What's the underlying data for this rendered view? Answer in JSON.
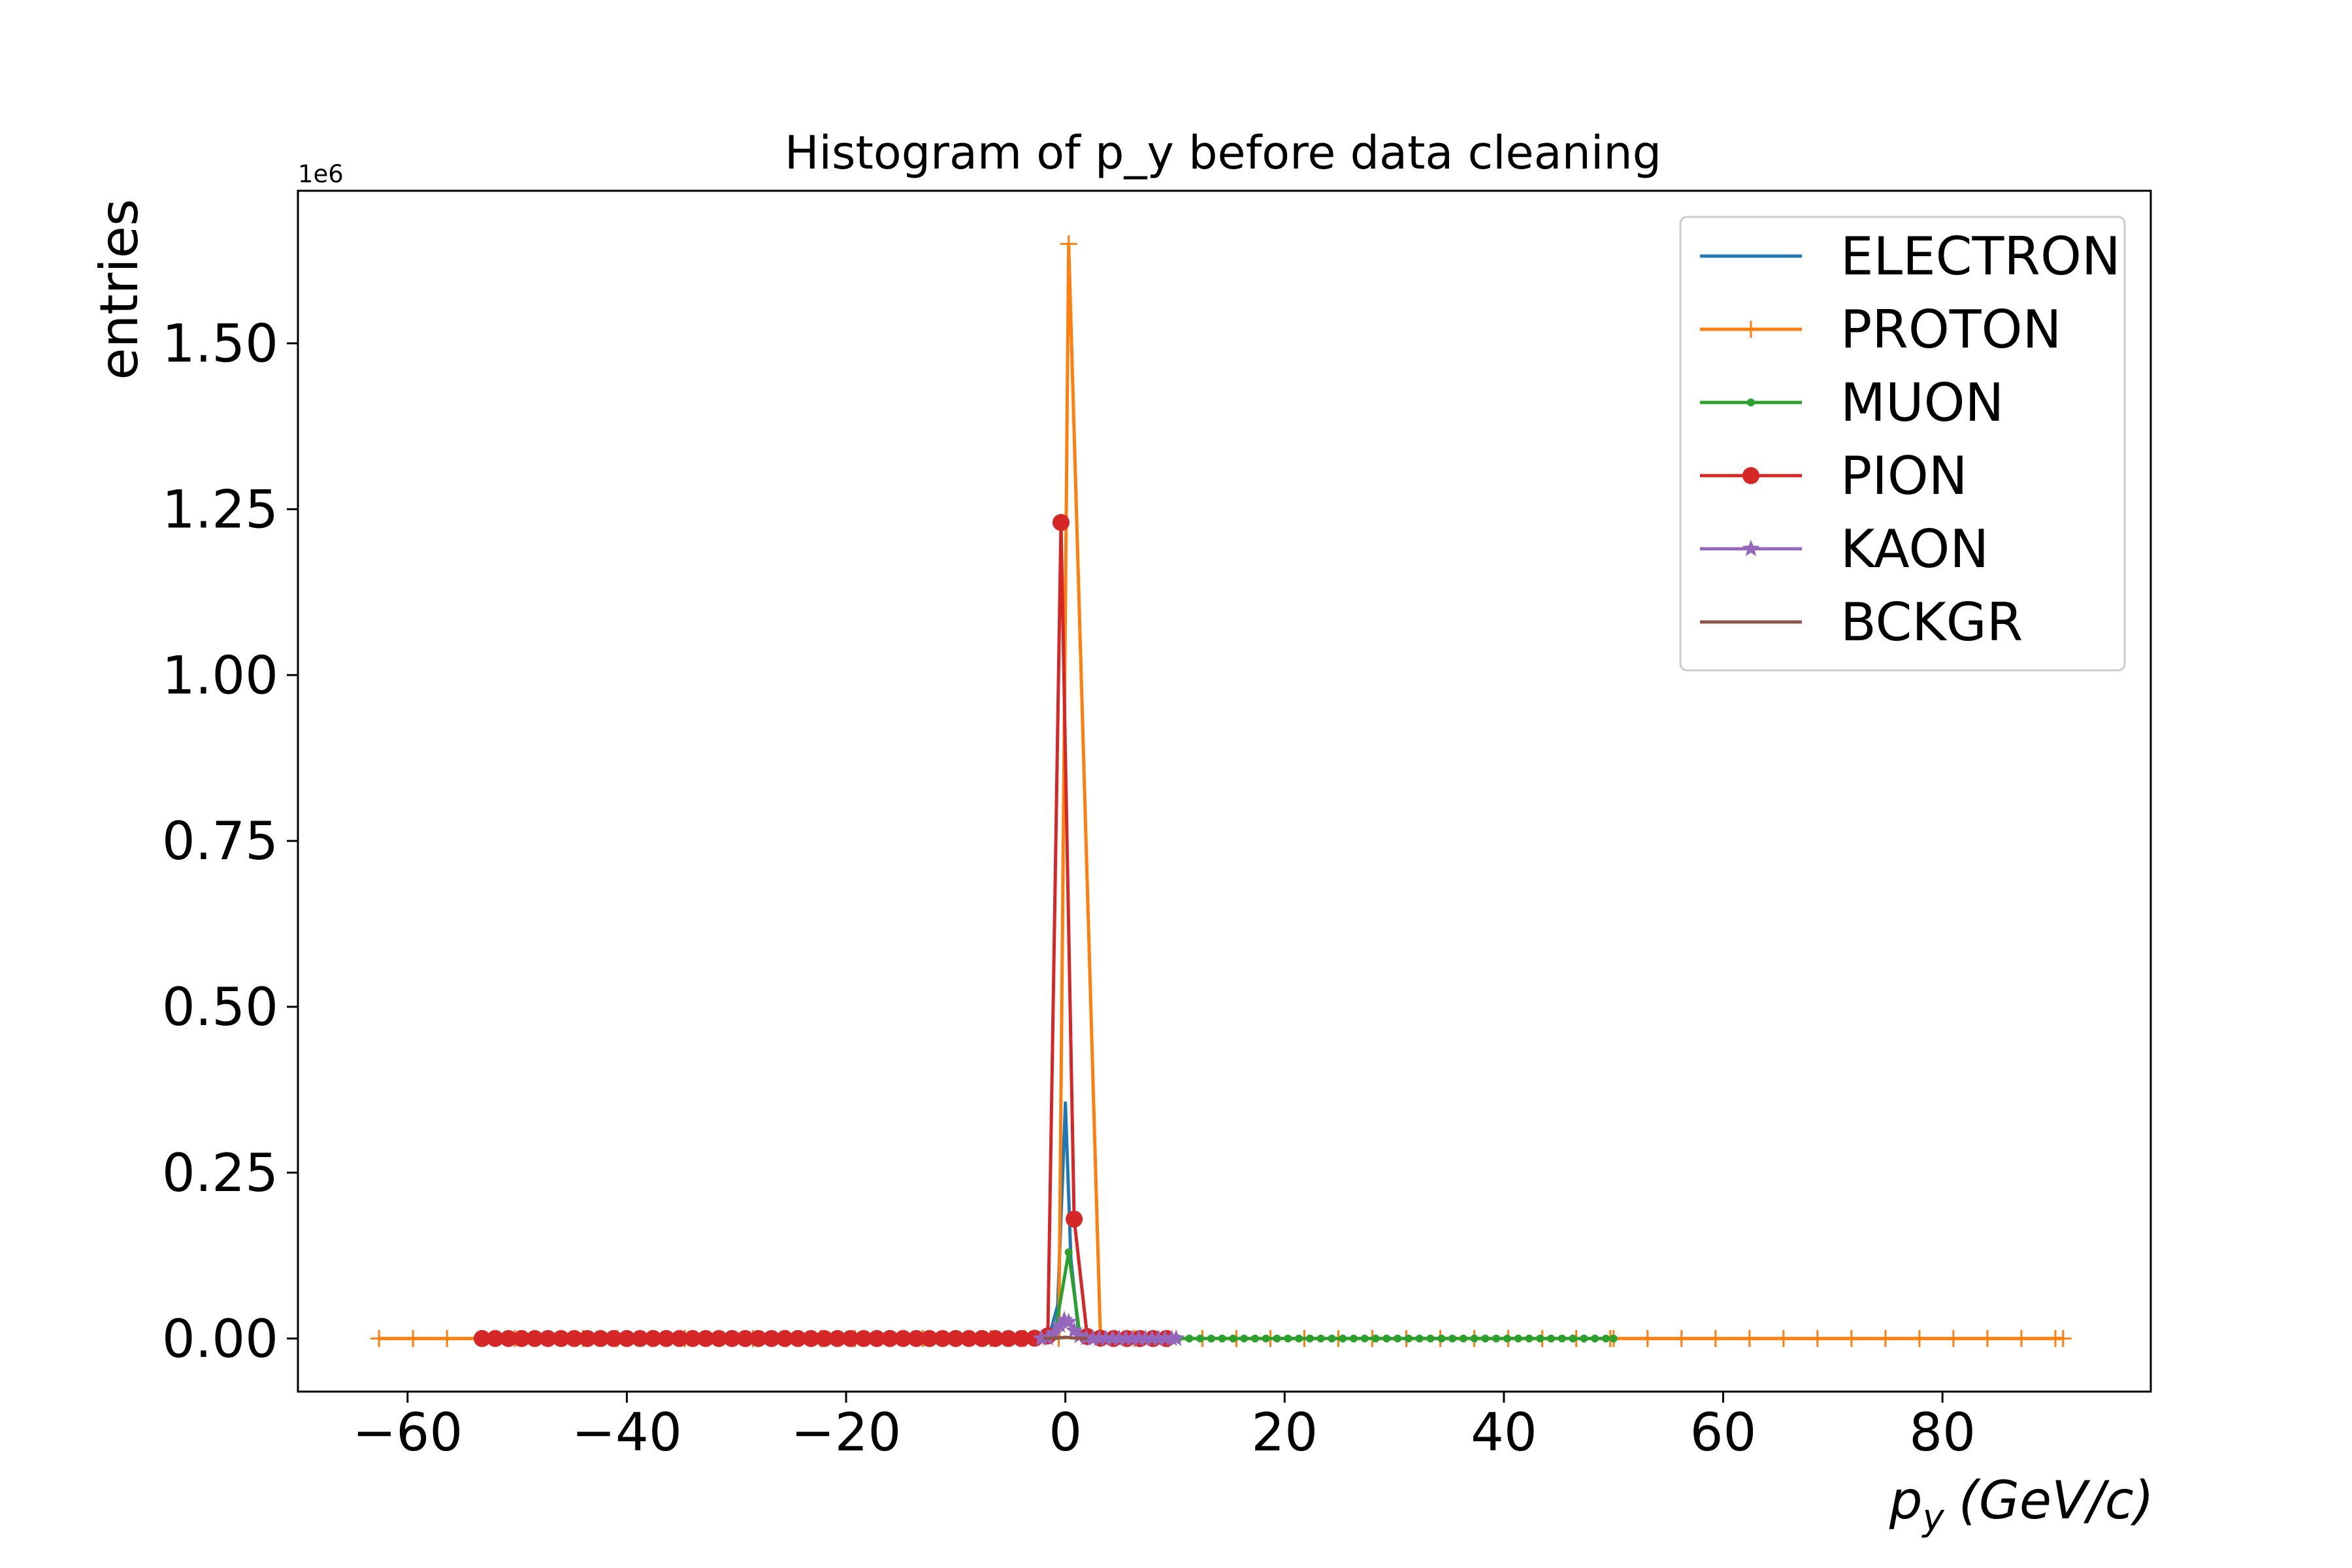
{
  "chart_data": {
    "type": "line",
    "title": "Histogram of p_y before data cleaning",
    "xlabel_main": "p",
    "xlabel_sub": "y",
    "xlabel_unit": "(GeV/c)",
    "ylabel": "entries",
    "y_offset_label": "1e6",
    "xlim": [
      -70,
      99
    ],
    "ylim": [
      -0.08,
      1.73
    ],
    "x_ticks": [
      -60,
      -40,
      -20,
      0,
      20,
      40,
      60,
      80
    ],
    "x_tick_labels": [
      "−60",
      "−40",
      "−20",
      "0",
      "20",
      "40",
      "60",
      "80"
    ],
    "y_ticks": [
      0.0,
      0.25,
      0.5,
      0.75,
      1.0,
      1.25,
      1.5
    ],
    "y_tick_labels": [
      "0.00",
      "0.25",
      "0.50",
      "0.75",
      "1.00",
      "1.25",
      "1.50"
    ],
    "grid": false,
    "legend_position": "top-right",
    "series": [
      {
        "name": "ELECTRON",
        "color": "#1f77b4",
        "marker": "none",
        "x": [
          -3.0,
          -1.5,
          -0.7,
          0.0,
          0.5,
          1.2,
          2.5,
          4.0
        ],
        "y": [
          0,
          0.002,
          0.05,
          0.355,
          0.12,
          0.01,
          0.001,
          0
        ]
      },
      {
        "name": "PROTON",
        "color": "#ff7f0e",
        "marker": "plus",
        "x": [
          -62.6,
          -59.5,
          -56.4,
          -53.3,
          -50.2,
          -47.1,
          -44.0,
          -40.9,
          -37.8,
          -34.7,
          -31.6,
          -28.5,
          -25.4,
          -22.3,
          -19.2,
          -16.1,
          -13.0,
          -9.9,
          -6.8,
          -3.7,
          -0.6,
          0.3,
          3.2,
          6.3,
          9.4,
          12.5,
          15.6,
          18.7,
          21.8,
          24.9,
          28.0,
          31.1,
          34.2,
          37.3,
          40.4,
          43.5,
          46.6,
          49.7,
          50.0,
          53.1,
          56.2,
          59.3,
          62.4,
          65.5,
          68.6,
          71.7,
          74.8,
          77.9,
          81.0,
          84.1,
          87.2,
          90.3,
          91.0
        ],
        "y": [
          0,
          0,
          0,
          0,
          0,
          0,
          0,
          0,
          0,
          0,
          0,
          0,
          0,
          0,
          0,
          0,
          0,
          0,
          0,
          0.0003,
          0.0003,
          1.65,
          0.0003,
          0,
          0,
          0,
          0,
          0,
          0,
          0,
          0,
          0,
          0,
          0,
          0,
          0,
          0,
          0,
          0,
          0,
          0,
          0,
          0,
          0,
          0,
          0,
          0,
          0,
          0,
          0,
          0,
          0,
          0
        ]
      },
      {
        "name": "MUON",
        "color": "#2ca02c",
        "marker": "point",
        "x": [
          -2.0,
          -1.0,
          0.3,
          1.3,
          2.3,
          3.3,
          4.3,
          5.3,
          6.3,
          7.3,
          8.3,
          9.3,
          10.3,
          11.3,
          12.3,
          13.3,
          14.3,
          15.3,
          16.3,
          17.3,
          18.3,
          19.3,
          20.3,
          21.3,
          22.3,
          23.3,
          24.3,
          25.3,
          26.3,
          27.3,
          28.3,
          29.3,
          30.3,
          31.3,
          32.3,
          33.3,
          34.3,
          35.3,
          36.3,
          37.3,
          38.3,
          39.3,
          40.3,
          41.3,
          42.3,
          43.3,
          44.3,
          45.3,
          46.3,
          47.3,
          48.3,
          49.3,
          50.0
        ],
        "y": [
          0,
          0.003,
          0.13,
          0.008,
          0.001,
          0,
          0,
          0,
          0,
          0,
          0,
          0,
          0,
          0,
          0,
          0,
          0,
          0,
          0,
          0,
          0,
          0,
          0,
          0,
          0,
          0,
          0,
          0,
          0,
          0,
          0,
          0,
          0,
          0,
          0,
          0,
          0,
          0,
          0,
          0,
          0,
          0,
          0,
          0,
          0,
          0,
          0,
          0,
          0,
          0,
          0,
          0,
          0
        ]
      },
      {
        "name": "PION",
        "color": "#d62728",
        "marker": "circle",
        "x": [
          -53.2,
          -52.0,
          -50.8,
          -49.6,
          -48.4,
          -47.2,
          -46.0,
          -44.8,
          -43.6,
          -42.4,
          -41.2,
          -40.0,
          -38.8,
          -37.6,
          -36.4,
          -35.2,
          -34.0,
          -32.8,
          -31.6,
          -30.4,
          -29.2,
          -28.0,
          -26.8,
          -25.6,
          -24.4,
          -23.2,
          -22.0,
          -20.8,
          -19.6,
          -18.4,
          -17.2,
          -16.0,
          -14.8,
          -13.6,
          -12.4,
          -11.2,
          -10.0,
          -8.8,
          -7.6,
          -6.4,
          -5.2,
          -4.0,
          -2.8,
          -1.6,
          -0.4,
          0.8,
          2.0,
          3.2,
          4.4,
          5.6,
          6.8,
          8.0,
          9.2
        ],
        "y": [
          0,
          0,
          0,
          0,
          0,
          0,
          0,
          0,
          0,
          0,
          0,
          0,
          0,
          0,
          0,
          0,
          0,
          0,
          0,
          0,
          0,
          0,
          0,
          0,
          0,
          0,
          0,
          0,
          0,
          0,
          0,
          0,
          0,
          0,
          0,
          0,
          0,
          0,
          0,
          0,
          0,
          0,
          0.0005,
          0.004,
          1.23,
          0.18,
          0.003,
          0.0005,
          0,
          0,
          0,
          0,
          0
        ]
      },
      {
        "name": "KAON",
        "color": "#9467bd",
        "marker": "star",
        "x": [
          -2.2,
          -1.6,
          -1.0,
          -0.5,
          -0.1,
          0.3,
          0.8,
          1.3,
          1.9,
          2.5,
          3.1,
          3.7,
          4.3,
          4.9,
          5.5,
          6.1,
          6.7,
          7.3,
          7.9,
          8.5,
          9.1,
          9.7,
          10.1
        ],
        "y": [
          0,
          0.001,
          0.008,
          0.02,
          0.028,
          0.025,
          0.012,
          0.004,
          0.001,
          0,
          0,
          0,
          0,
          0,
          0,
          0,
          0,
          0,
          0,
          0,
          0,
          0,
          0
        ]
      },
      {
        "name": "BCKGR",
        "color": "#8c564b",
        "marker": "none",
        "x": [
          -2.0,
          -0.5,
          0.0,
          0.5,
          2.0
        ],
        "y": [
          0,
          0.001,
          0.002,
          0.001,
          0
        ]
      }
    ]
  }
}
